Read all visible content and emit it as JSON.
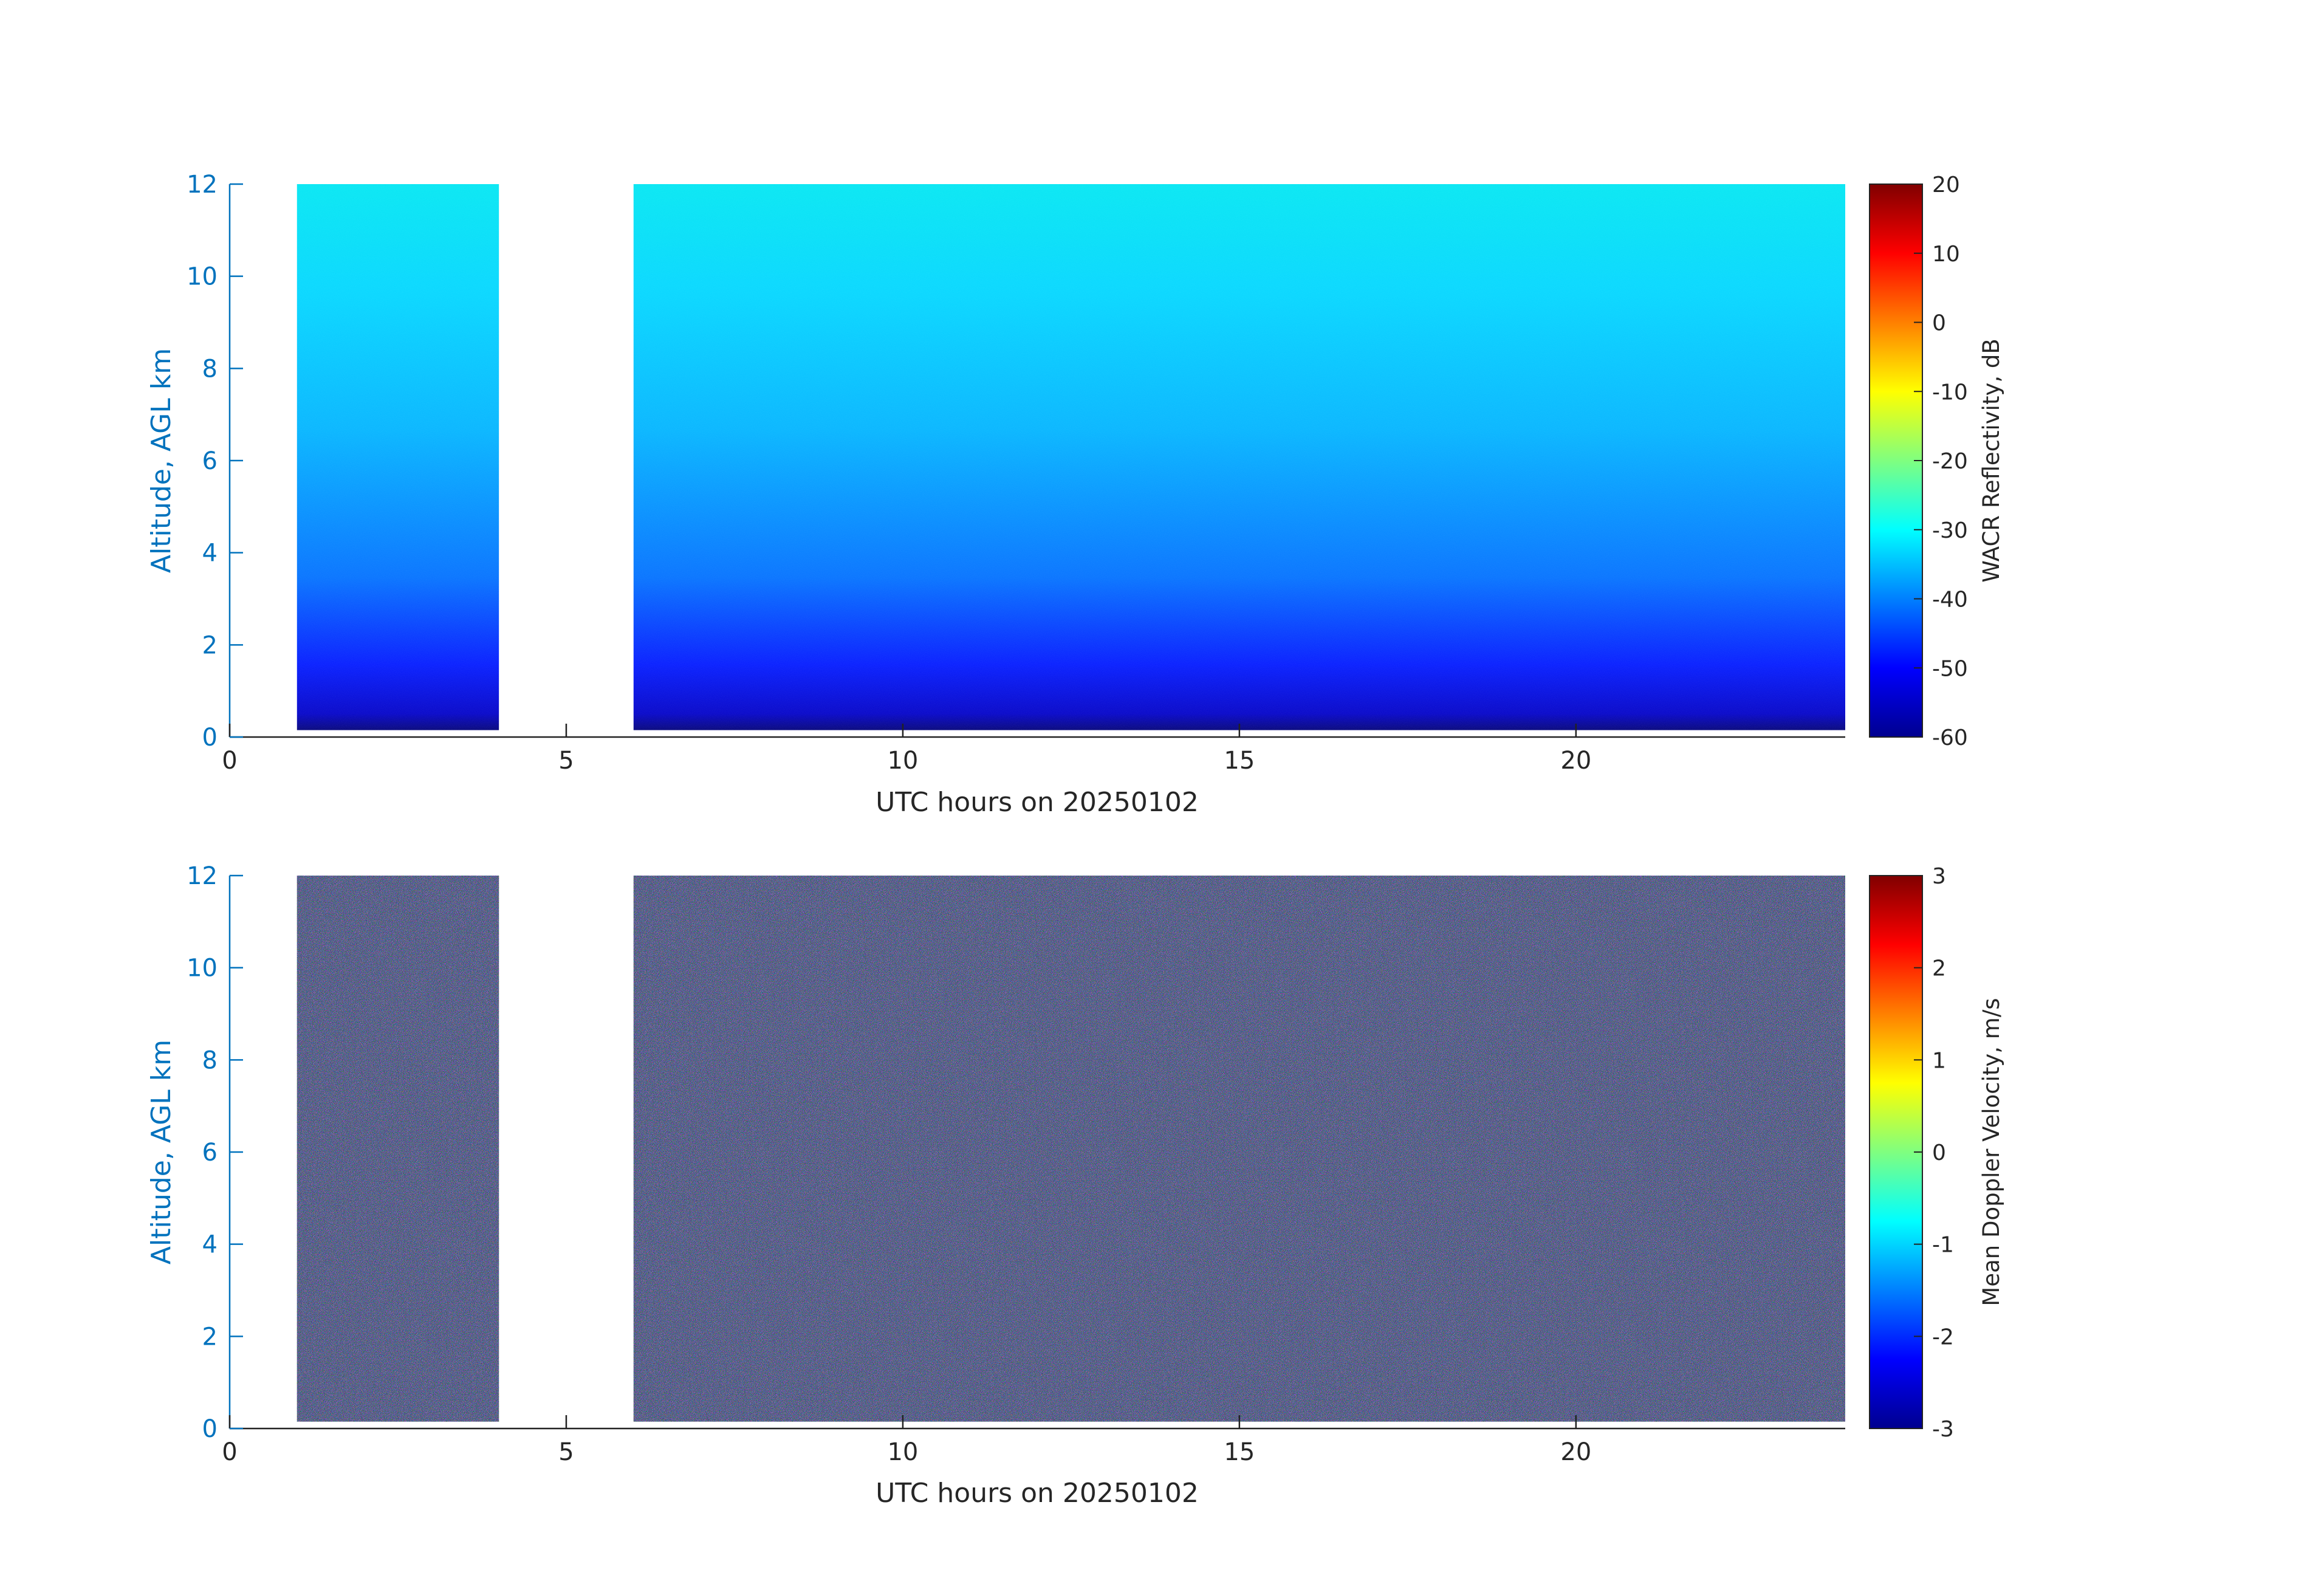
{
  "colors": {
    "axis": "#262626",
    "yaxis": "#0072BD",
    "background": "#ffffff",
    "jet": [
      "#00008f",
      "#0000ff",
      "#00ffff",
      "#ffff00",
      "#ff0000",
      "#800000"
    ]
  },
  "chart_data": [
    {
      "type": "heatmap",
      "title": "",
      "xlabel": "UTC hours on 20250102",
      "ylabel": "Altitude, AGL km",
      "xlim": [
        0,
        24
      ],
      "ylim": [
        0,
        12
      ],
      "xticks": [
        0,
        5,
        10,
        15,
        20
      ],
      "yticks": [
        0,
        2,
        4,
        6,
        8,
        10,
        12
      ],
      "colormap": "jet",
      "data_segments": [
        [
          1.0,
          4.0
        ],
        [
          6.0,
          24.0
        ]
      ],
      "data_altitude_range": [
        0.15,
        12
      ],
      "approx_values": [
        {
          "altitude_km": 0.2,
          "value": -57
        },
        {
          "altitude_km": 1.0,
          "value": -50
        },
        {
          "altitude_km": 2.0,
          "value": -45
        },
        {
          "altitude_km": 4.0,
          "value": -39
        },
        {
          "altitude_km": 6.0,
          "value": -35
        },
        {
          "altitude_km": 8.0,
          "value": -33
        },
        {
          "altitude_km": 12.0,
          "value": -30
        }
      ],
      "colorbar": {
        "label": "WACR Reflectivity, dB",
        "range": [
          -60,
          20
        ],
        "ticks": [
          20,
          10,
          0,
          -10,
          -20,
          -30,
          -40,
          -50,
          -60
        ]
      }
    },
    {
      "type": "heatmap",
      "title": "",
      "xlabel": "UTC hours on 20250102",
      "ylabel": "Altitude, AGL km",
      "xlim": [
        0,
        24
      ],
      "ylim": [
        0,
        12
      ],
      "xticks": [
        0,
        5,
        10,
        15,
        20
      ],
      "yticks": [
        0,
        2,
        4,
        6,
        8,
        10,
        12
      ],
      "colormap": "jet",
      "data_segments": [
        [
          1.0,
          4.0
        ],
        [
          6.0,
          24.0
        ]
      ],
      "data_altitude_range": [
        0.15,
        12
      ],
      "approx_values": [
        {
          "description": "noise",
          "value_range": [
            -3,
            3
          ]
        }
      ],
      "colorbar": {
        "label": "Mean Doppler Velocity, m/s",
        "range": [
          -3,
          3
        ],
        "ticks": [
          3,
          2,
          1,
          0,
          -1,
          -2,
          -3
        ]
      }
    }
  ]
}
